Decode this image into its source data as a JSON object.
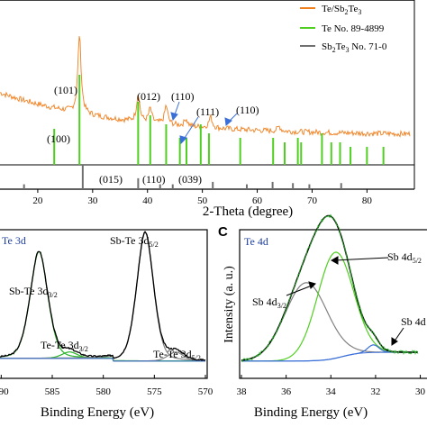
{
  "top": {
    "legend": [
      {
        "label": "Te/Sb",
        "sub1": "2",
        "mid": "Te",
        "sub2": "3",
        "color": "#f07f1e"
      },
      {
        "label": "Te No. 89-4899",
        "color": "#4fcf1f"
      },
      {
        "label": "Sb",
        "sub1": "2",
        "mid": "Te",
        "sub2": "3",
        "tail": " No. 71-0",
        "color": "#707070"
      }
    ],
    "xlabel": "2-Theta (degree)",
    "xticks": [
      20,
      30,
      40,
      50,
      60,
      70,
      80
    ],
    "xlim": [
      10,
      87
    ],
    "peak_labels_te": [
      "(100)",
      "(101)",
      "(012)",
      "(110)",
      "(111)",
      "(110)"
    ],
    "peak_labels_sbte": [
      "(015)",
      "(110)",
      "(039)"
    ]
  },
  "bottom_left": {
    "panel_title": "Te 3d",
    "xlabel": "Binding Energy (eV)",
    "xticks": [
      590,
      585,
      580,
      575,
      570
    ],
    "xlim": [
      591,
      570
    ],
    "labels": [
      {
        "main": "Sb-Te 3d",
        "sub": "3/2"
      },
      {
        "main": "Sb-Te 3d",
        "sub": "5/2"
      },
      {
        "main": "Te-Te 3d",
        "sub": "3/2"
      },
      {
        "main": "Te-Te 3d",
        "sub": "5/2"
      }
    ]
  },
  "bottom_right": {
    "panel_letter": "C",
    "panel_title": "Te 4d",
    "xlabel": "Binding Energy (eV)",
    "ylabel": "Intensity (a. u.)",
    "xticks": [
      38,
      36,
      34,
      32,
      30
    ],
    "xlim": [
      38,
      29.7
    ],
    "labels": [
      {
        "main": "Sb 4d",
        "sub": "3/2"
      },
      {
        "main": "Sb 4d",
        "sub": "5/2"
      },
      {
        "main": "Sb 4d",
        "sub": ""
      }
    ]
  },
  "chart_data": [
    {
      "type": "line",
      "xlabel": "2-Theta (degree)",
      "xlim": [
        10,
        87
      ],
      "series": [
        {
          "name": "Te/Sb2Te3",
          "color": "#f07f1e",
          "peaks": [
            {
              "x": 27.6,
              "h": 0.85
            },
            {
              "x": 38.3,
              "h": 0.3
            },
            {
              "x": 40.5,
              "h": 0.15
            },
            {
              "x": 43.4,
              "h": 0.2
            },
            {
              "x": 47.0,
              "h": 0.08
            },
            {
              "x": 51.5,
              "h": 0.12
            },
            {
              "x": 64.0,
              "h": 0.05
            }
          ],
          "background": {
            "start": 0.75,
            "decay": 0.045,
            "floor": 0.22
          }
        }
      ],
      "reference": [
        {
          "name": "Te No. 89-4899",
          "color": "#4fcf1f",
          "x": [
            23.0,
            27.6,
            38.3,
            40.5,
            43.4,
            45.9,
            47.1,
            49.7,
            51.2,
            56.9,
            62.9,
            65.0,
            67.4,
            68.0,
            71.8,
            73.5,
            75.1,
            77.0,
            80.0,
            83.0
          ],
          "h": [
            0.4,
            1.0,
            0.7,
            0.55,
            0.45,
            0.3,
            0.3,
            0.45,
            0.35,
            0.3,
            0.3,
            0.25,
            0.3,
            0.25,
            0.35,
            0.25,
            0.25,
            0.2,
            0.2,
            0.2
          ]
        },
        {
          "name": "Sb2Te3 No. 71-0",
          "color": "#707070",
          "x": [
            17.5,
            28.2,
            38.3,
            42.3,
            44.6,
            51.9,
            58.1,
            62.8,
            66.5,
            69.5,
            75.3
          ],
          "h": [
            0.2,
            1.0,
            0.45,
            0.2,
            0.2,
            0.3,
            0.2,
            0.3,
            0.25,
            0.2,
            0.25
          ]
        }
      ]
    },
    {
      "type": "line",
      "panel": "Te 3d",
      "xlabel": "Binding Energy (eV)",
      "xlim": [
        591,
        570
      ],
      "peaks": [
        {
          "label": "Sb-Te 3d3/2",
          "x": 586.3,
          "h": 0.83,
          "w": 0.9,
          "color": "#2ab52a"
        },
        {
          "label": "Te-Te 3d3/2",
          "x": 583.3,
          "h": 0.05,
          "w": 0.8,
          "color": "#2ab52a"
        },
        {
          "label": "Sb-Te 3d5/2",
          "x": 575.9,
          "h": 1.0,
          "w": 0.85,
          "color": "#808080"
        },
        {
          "label": "Te-Te 3d5/2",
          "x": 572.9,
          "h": 0.07,
          "w": 0.8,
          "color": "#808080"
        }
      ],
      "background_color": "#3a6fd8"
    },
    {
      "type": "line",
      "panel": "Te 4d",
      "xlabel": "Binding Energy (eV)",
      "ylabel": "Intensity (a. u.)",
      "xlim": [
        38,
        29.7
      ],
      "peaks": [
        {
          "label": "Sb 4d3/2",
          "x": 35.1,
          "h": 0.62,
          "w": 0.95,
          "color": "#808080"
        },
        {
          "label": "Sb 4d5/2",
          "x": 33.8,
          "h": 0.84,
          "w": 0.8,
          "color": "#4fcf1f"
        },
        {
          "label": "Sb 4d",
          "x": 32.1,
          "h": 0.06,
          "w": 0.25,
          "color": "#3a6fd8"
        }
      ]
    }
  ]
}
